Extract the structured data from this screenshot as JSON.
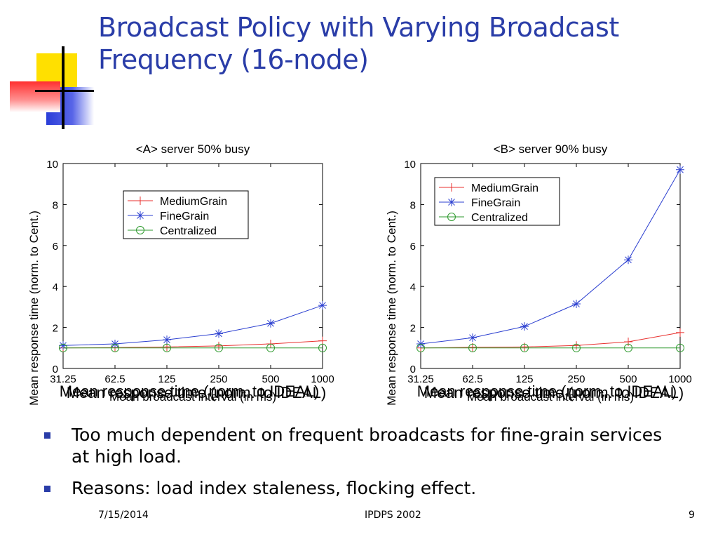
{
  "slide": {
    "title_lines": [
      "Broadcast Policy with Varying Broadcast",
      "Frequency (16-node)"
    ],
    "bullets": [
      "Too much dependent on frequent broadcasts for fine-grain services at high load.",
      "Reasons: load index staleness, flocking effect."
    ],
    "footer": {
      "date": "7/15/2014",
      "event": "IPDPS 2002",
      "page": "9"
    },
    "colors": {
      "title": "#2a3da8",
      "bullet": "#2a3da8"
    }
  },
  "chart_data": [
    {
      "type": "line",
      "title": "<A> server 50% busy",
      "xlabel": "Mean broadcast interval (in ms)",
      "ylabel": "Mean response time (norm. to Cent.)",
      "overlap_label": "Mean response time (norm. to IDEAL)",
      "categories": [
        "31.25",
        "62.5",
        "125",
        "250",
        "500",
        "1000"
      ],
      "ylim": [
        0,
        10
      ],
      "yticks": [
        "0",
        "2",
        "4",
        "6",
        "8",
        "10"
      ],
      "legend_position": "top-right",
      "series": [
        {
          "name": "MediumGrain",
          "color": "#e8312f",
          "marker": "plus",
          "values": [
            1.0,
            1.02,
            1.05,
            1.1,
            1.2,
            1.35
          ]
        },
        {
          "name": "FineGrain",
          "color": "#2b3fd0",
          "marker": "star",
          "values": [
            1.12,
            1.2,
            1.4,
            1.7,
            2.2,
            3.08
          ]
        },
        {
          "name": "Centralized",
          "color": "#2e9a2e",
          "marker": "circle",
          "values": [
            1.0,
            1.0,
            1.0,
            1.0,
            1.0,
            1.0
          ]
        }
      ]
    },
    {
      "type": "line",
      "title": "<B> server 90% busy",
      "xlabel": "Mean broadcast interval (in ms)",
      "ylabel": "Mean response time (norm. to Cent.)",
      "overlap_label": "Mean response time (norm. to IDEAL)",
      "categories": [
        "31.25",
        "62.5",
        "125",
        "250",
        "500",
        "1000"
      ],
      "ylim": [
        0,
        10
      ],
      "yticks": [
        "0",
        "2",
        "4",
        "6",
        "8",
        "10"
      ],
      "legend_position": "top-left",
      "series": [
        {
          "name": "MediumGrain",
          "color": "#e8312f",
          "marker": "plus",
          "values": [
            1.0,
            1.03,
            1.05,
            1.12,
            1.3,
            1.75
          ]
        },
        {
          "name": "FineGrain",
          "color": "#2b3fd0",
          "marker": "star",
          "values": [
            1.2,
            1.5,
            2.05,
            3.15,
            5.3,
            9.7
          ]
        },
        {
          "name": "Centralized",
          "color": "#2e9a2e",
          "marker": "circle",
          "values": [
            1.0,
            1.0,
            1.0,
            1.0,
            1.0,
            1.0
          ]
        }
      ]
    }
  ]
}
